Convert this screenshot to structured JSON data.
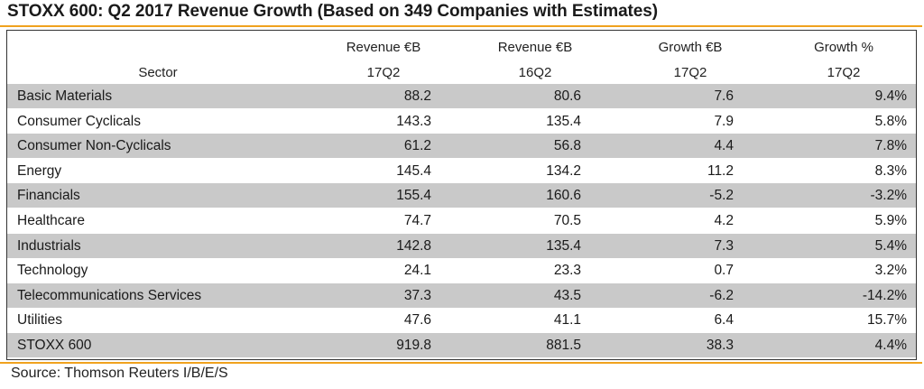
{
  "title": "STOXX 600: Q2 2017 Revenue Growth (Based on 349 Companies with Estimates)",
  "source": "Source: Thomson Reuters I/B/E/S",
  "colors": {
    "accent_rule": "#f0a21e",
    "shaded_row": "#c9c9c9"
  },
  "chart_data": {
    "type": "table",
    "title": "STOXX 600: Q2 2017 Revenue Growth (Based on 349 Companies with Estimates)",
    "columns": [
      {
        "line1": "",
        "line2": "Sector"
      },
      {
        "line1": "Revenue €B",
        "line2": "17Q2"
      },
      {
        "line1": "Revenue €B",
        "line2": "16Q2"
      },
      {
        "line1": "Growth €B",
        "line2": "17Q2"
      },
      {
        "line1": "Growth %",
        "line2": "17Q2"
      }
    ],
    "rows": [
      {
        "sector": "Basic Materials",
        "rev_17q2": "88.2",
        "rev_16q2": "80.6",
        "growth_eur": "7.6",
        "growth_pct": "9.4%"
      },
      {
        "sector": "Consumer Cyclicals",
        "rev_17q2": "143.3",
        "rev_16q2": "135.4",
        "growth_eur": "7.9",
        "growth_pct": "5.8%"
      },
      {
        "sector": "Consumer Non-Cyclicals",
        "rev_17q2": "61.2",
        "rev_16q2": "56.8",
        "growth_eur": "4.4",
        "growth_pct": "7.8%"
      },
      {
        "sector": "Energy",
        "rev_17q2": "145.4",
        "rev_16q2": "134.2",
        "growth_eur": "11.2",
        "growth_pct": "8.3%"
      },
      {
        "sector": "Financials",
        "rev_17q2": "155.4",
        "rev_16q2": "160.6",
        "growth_eur": "-5.2",
        "growth_pct": "-3.2%"
      },
      {
        "sector": "Healthcare",
        "rev_17q2": "74.7",
        "rev_16q2": "70.5",
        "growth_eur": "4.2",
        "growth_pct": "5.9%"
      },
      {
        "sector": "Industrials",
        "rev_17q2": "142.8",
        "rev_16q2": "135.4",
        "growth_eur": "7.3",
        "growth_pct": "5.4%"
      },
      {
        "sector": "Technology",
        "rev_17q2": "24.1",
        "rev_16q2": "23.3",
        "growth_eur": "0.7",
        "growth_pct": "3.2%"
      },
      {
        "sector": "Telecommunications Services",
        "rev_17q2": "37.3",
        "rev_16q2": "43.5",
        "growth_eur": "-6.2",
        "growth_pct": "-14.2%"
      },
      {
        "sector": "Utilities",
        "rev_17q2": "47.6",
        "rev_16q2": "41.1",
        "growth_eur": "6.4",
        "growth_pct": "15.7%"
      },
      {
        "sector": "STOXX 600",
        "rev_17q2": "919.8",
        "rev_16q2": "881.5",
        "growth_eur": "38.3",
        "growth_pct": "4.4%"
      }
    ]
  }
}
